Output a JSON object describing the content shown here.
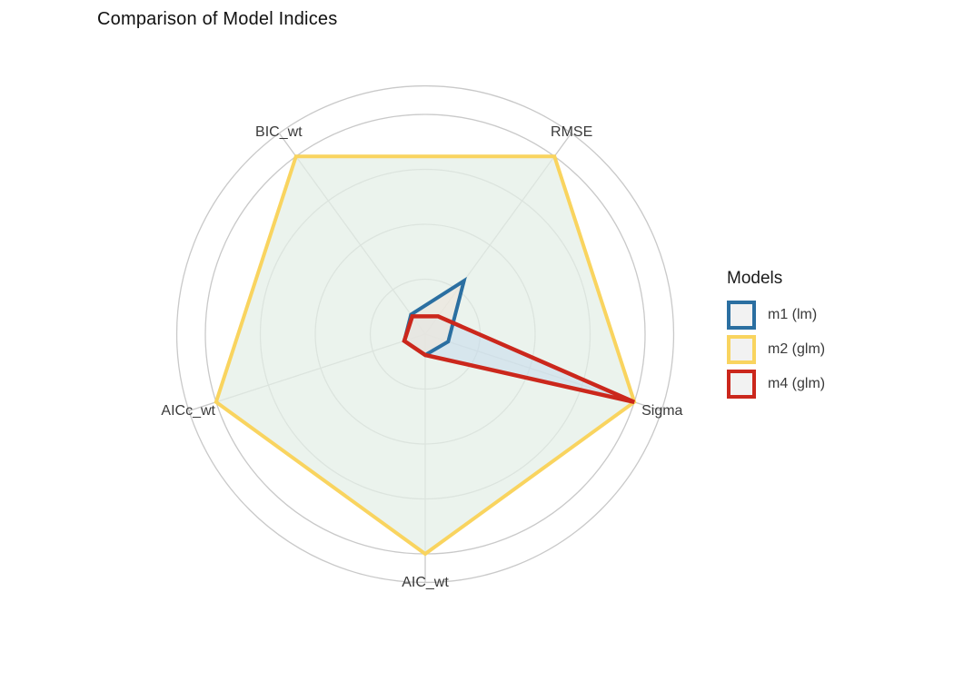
{
  "chart_data": {
    "type": "radar",
    "title": "Comparison of Model Indices",
    "legend_title": "Models",
    "legend_position": "right",
    "value_range": [
      0,
      1
    ],
    "rings": [
      0.25,
      0.5,
      0.75,
      1.0
    ],
    "outer_ring": 1.13,
    "grid": "on",
    "axes": [
      {
        "label": "BIC_wt",
        "angle_deg": 126
      },
      {
        "label": "RMSE",
        "angle_deg": 54
      },
      {
        "label": "Sigma",
        "angle_deg": 342
      },
      {
        "label": "AIC_wt",
        "angle_deg": 270
      },
      {
        "label": "AICc_wt",
        "angle_deg": 198
      }
    ],
    "series": [
      {
        "name": "m1 (lm)",
        "color": "#2b6fa1",
        "fill": "#ece7dd",
        "fill_opacity": 0.75,
        "stroke_width": 4,
        "values": [
          0.11,
          0.3,
          0.11,
          0.095,
          0.1
        ]
      },
      {
        "name": "m2 (glm)",
        "color": "#f9d45f",
        "fill": "#e3efe6",
        "fill_opacity": 0.72,
        "stroke_width": 4,
        "values": [
          1.0,
          1.0,
          1.0,
          1.0,
          1.0
        ]
      },
      {
        "name": "m4 (glm)",
        "color": "#cb271c",
        "fill": "#c7daec",
        "fill_opacity": 0.55,
        "stroke_width": 4.5,
        "values": [
          0.1,
          0.1,
          1.0,
          0.095,
          0.1
        ]
      }
    ],
    "colors": {
      "grid": "#c9c9c9",
      "axis_text": "#3a3a3a",
      "title_text": "#111111",
      "legend_key_fill": "#f2f2f2"
    }
  }
}
